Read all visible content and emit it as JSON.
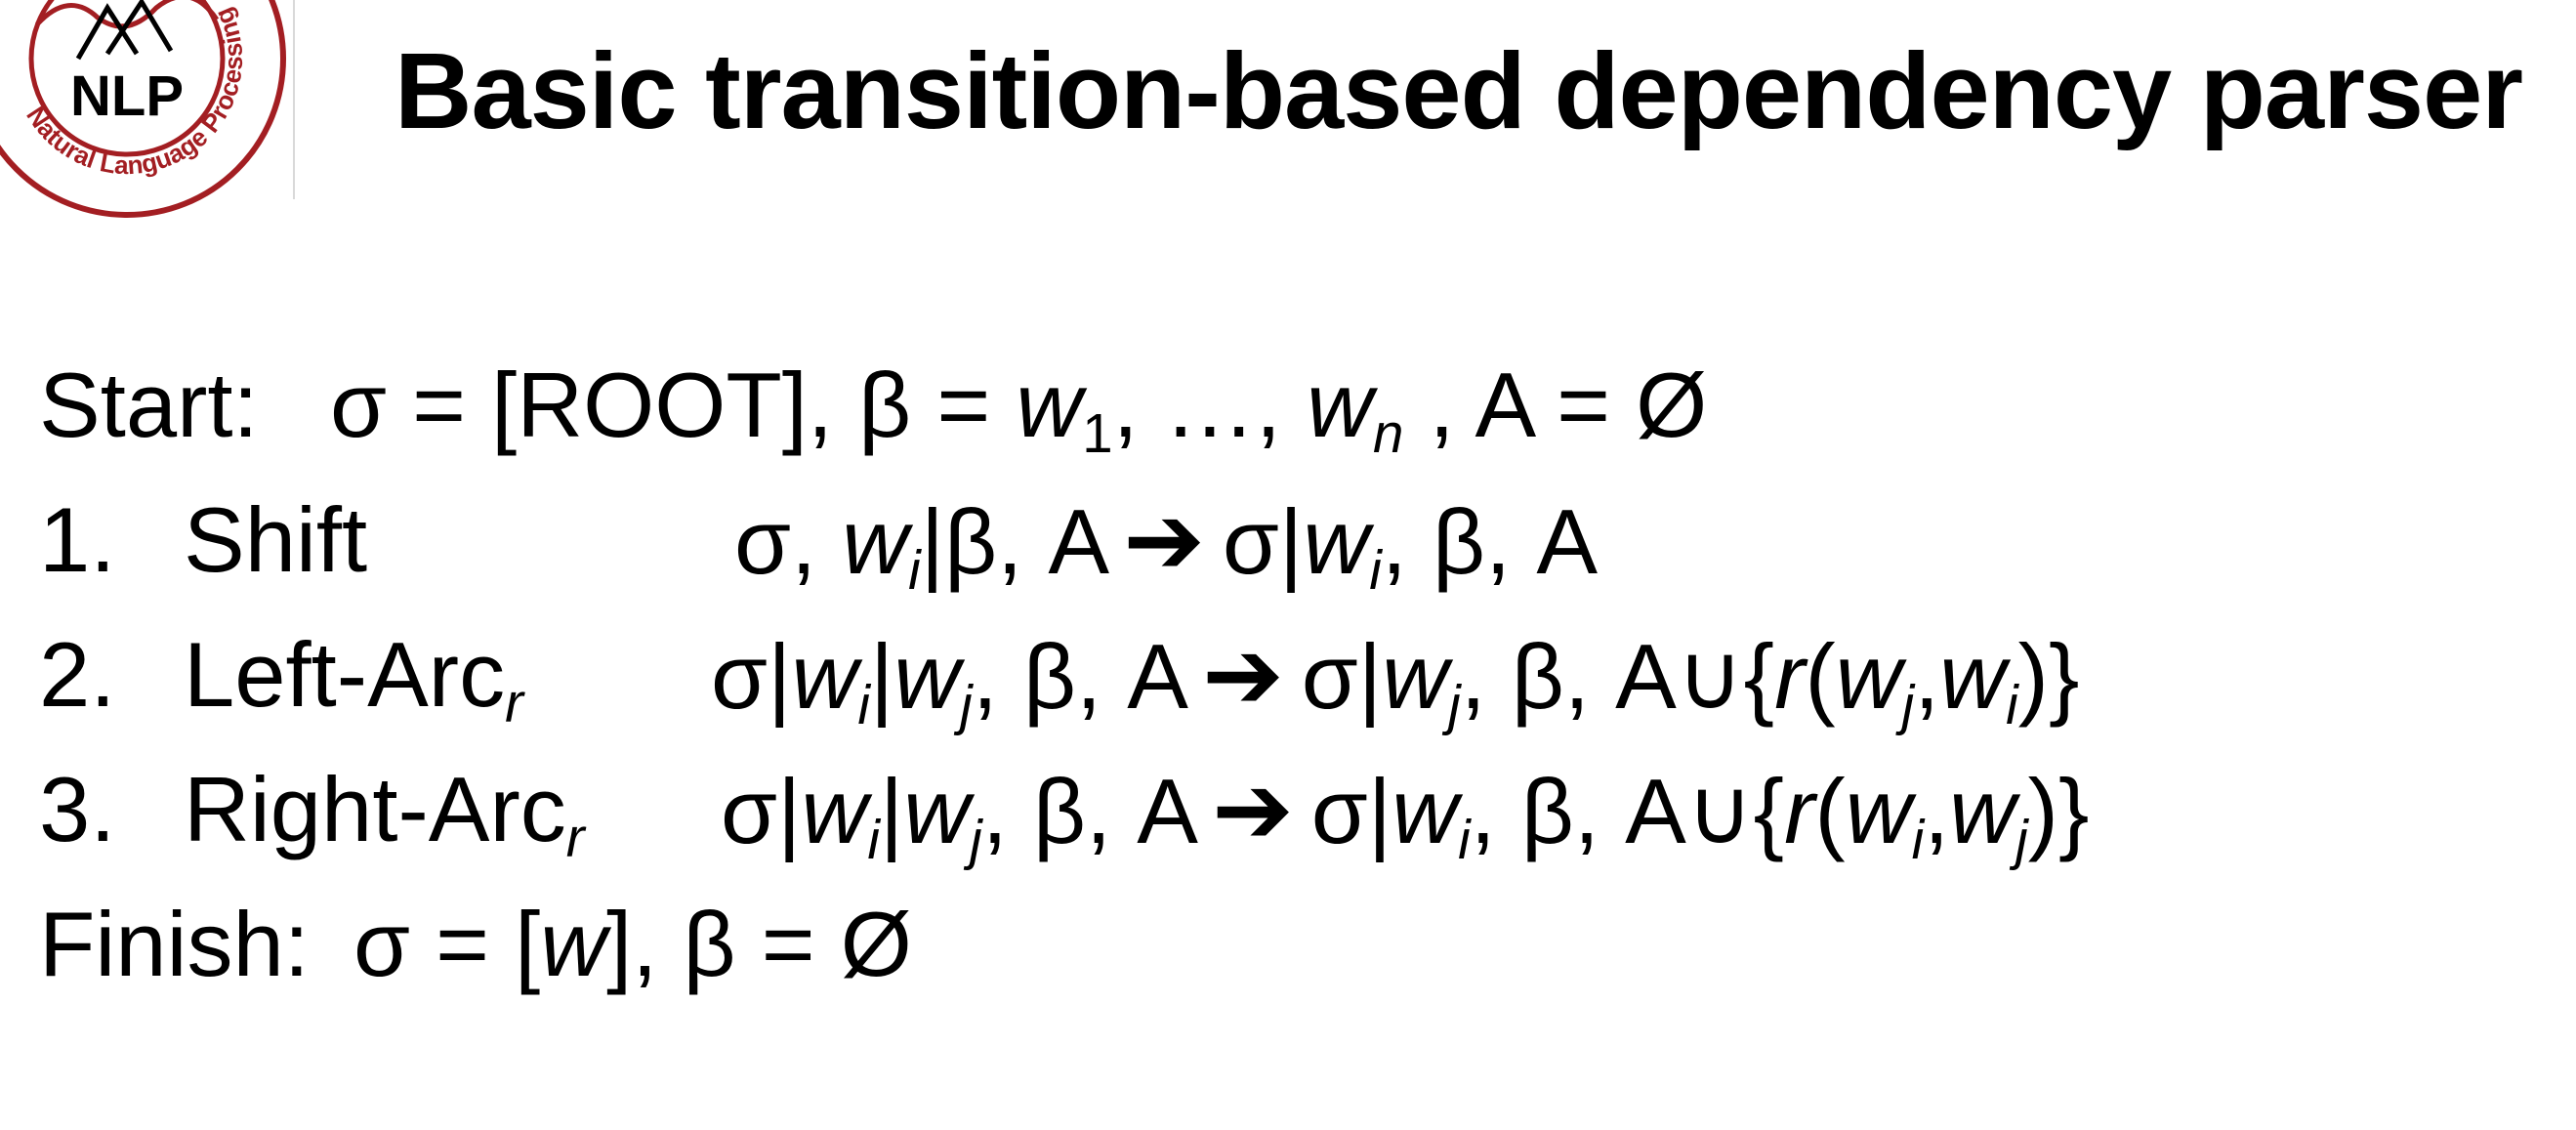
{
  "slide": {
    "title": "Basic transition-based dependency parser",
    "logo": {
      "text": "NLP",
      "ring_text": "Natural Language Processing",
      "color": "#a31e22"
    },
    "start": {
      "label": "Start:",
      "formula_parts": [
        "σ = [ROOT], β = ",
        "w",
        "1",
        ", …, ",
        "w",
        "n",
        " , A = Ø"
      ]
    },
    "rules": [
      {
        "number": "1.",
        "name": "Shift",
        "subscript": ""
      },
      {
        "number": "2.",
        "name": "Left-Arc",
        "subscript": "r"
      },
      {
        "number": "3.",
        "name": "Right-Arc",
        "subscript": "r"
      }
    ],
    "finish": {
      "label": "Finish:",
      "formula_parts": [
        "σ = [",
        "w",
        "], β = Ø"
      ]
    },
    "symbols": {
      "sigma": "σ",
      "beta": "β",
      "bar": "|",
      "w": "w",
      "i": "i",
      "j": "j",
      "r": "r",
      "A": "A",
      "union": "A∪{",
      "arrow": "➔"
    }
  }
}
